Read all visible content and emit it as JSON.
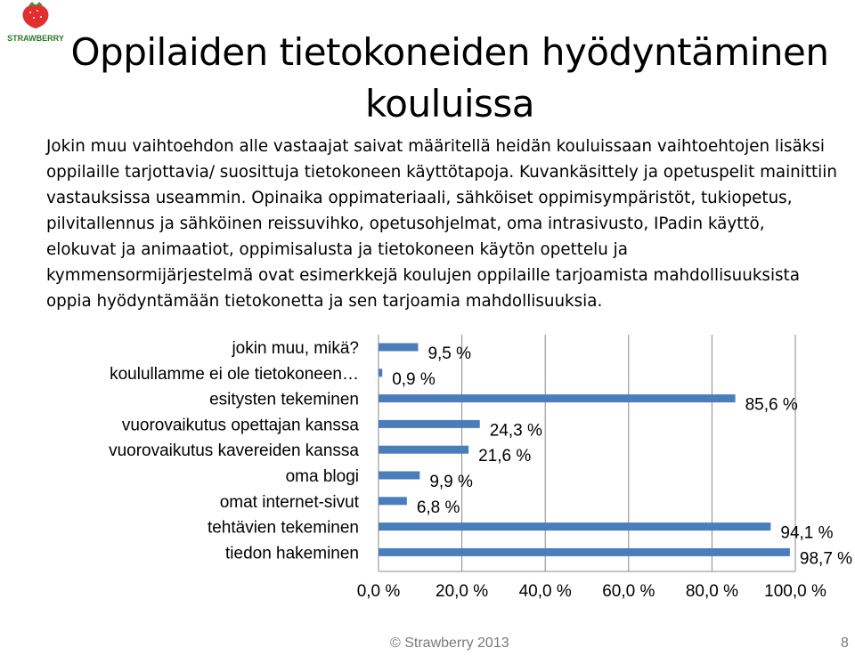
{
  "logo": {
    "text": "STRAWBERRY",
    "icon": "strawberry-icon",
    "color": "#e03030"
  },
  "title": "Oppilaiden tietokoneiden hyödyntäminen kouluissa",
  "body": "Jokin muu vaihtoehdon alle vastaajat saivat määritellä heidän kouluissaan vaihtoehtojen lisäksi oppilaille tarjottavia/ suosittuja tietokoneen käyttötapoja. Kuvankäsittely ja opetuspelit mainittiin vastauksissa useammin. Opinaika oppimateriaali, sähköiset oppimisympäristöt, tukiopetus, pilvitallennus ja sähköinen reissuvihko, opetusohjelmat, oma intrasivusto, IPadin käyttö, elokuvat ja animaatiot, oppimisalusta ja tietokoneen käytön opettelu ja kymmensormijärjestelmä ovat esimerkkejä koulujen oppilaille tarjoamista mahdollisuuksista oppia hyödyntämään tietokonetta ja sen tarjoamia mahdollisuuksia.",
  "chart_data": {
    "type": "bar",
    "orientation": "horizontal",
    "categories": [
      "jokin muu, mikä?",
      "koulullamme ei ole tietokoneen…",
      "esitysten tekeminen",
      "vuorovaikutus opettajan kanssa",
      "vuorovaikutus kavereiden kanssa",
      "oma blogi",
      "omat internet-sivut",
      "tehtävien tekeminen",
      "tiedon hakeminen"
    ],
    "values": [
      9.5,
      0.9,
      85.6,
      24.3,
      21.6,
      9.9,
      6.8,
      94.1,
      98.7
    ],
    "value_labels": [
      "9,5 %",
      "0,9 %",
      "85,6 %",
      "24,3 %",
      "21,6 %",
      "9,9 %",
      "6,8 %",
      "94,1 %",
      "98,7 %"
    ],
    "xlim": [
      0,
      100
    ],
    "x_ticks": [
      0,
      20,
      40,
      60,
      80,
      100
    ],
    "x_tick_labels": [
      "0,0 %",
      "20,0 %",
      "40,0 %",
      "60,0 %",
      "80,0 %",
      "100,0 %"
    ],
    "bar_color": "#4a7ebb",
    "grid": true,
    "legend": "none"
  },
  "footer": "© Strawberry 2013",
  "page_number": "8"
}
